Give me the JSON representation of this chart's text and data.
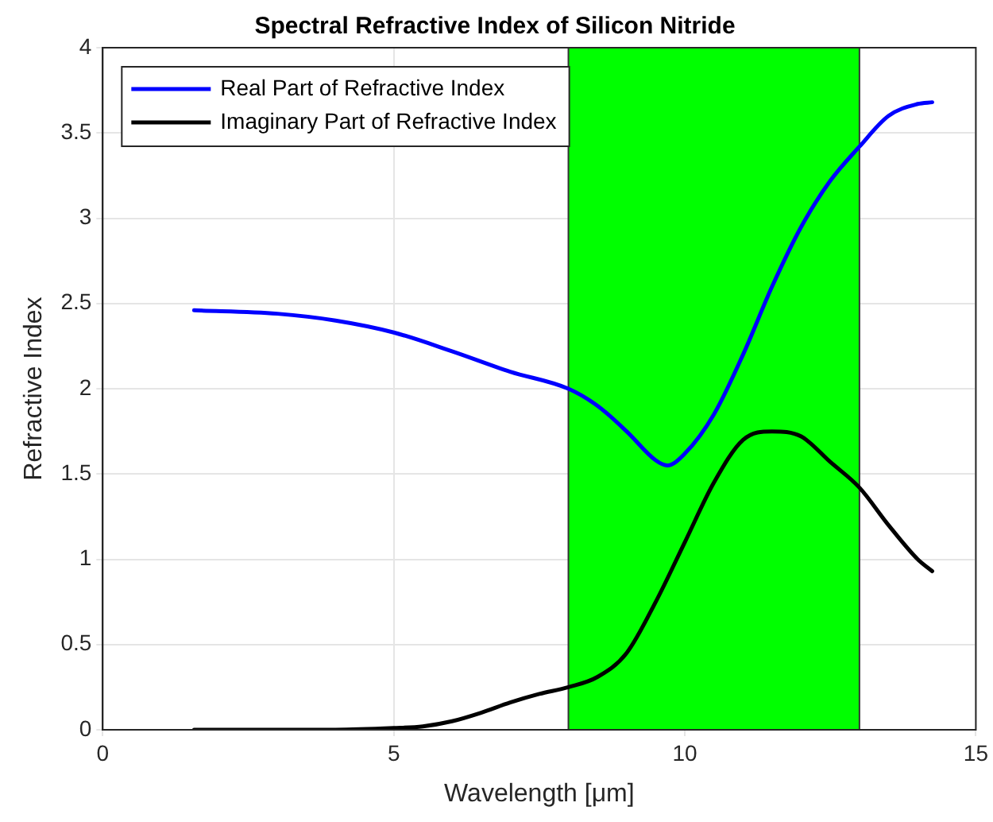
{
  "chart_data": {
    "type": "line",
    "title": "Spectral Refractive Index of Silicon Nitride",
    "xlabel": "Wavelength [μm]",
    "ylabel": "Refractive Index",
    "xlim": [
      0,
      15
    ],
    "xticks": [
      0,
      5,
      10,
      15
    ],
    "ylim": [
      0,
      4
    ],
    "yticks": [
      0,
      0.5,
      1,
      1.5,
      2,
      2.5,
      3,
      3.5,
      4
    ],
    "grid": true,
    "legend": "top left",
    "marker": "none",
    "line_style": "solid",
    "bands": [
      {
        "axis": "x",
        "from": 8,
        "to": 13,
        "color": "#00ff00"
      }
    ],
    "series": [
      {
        "name": "Real Part of Refractive Index",
        "color": "#0000ff",
        "x": [
          1.57,
          3,
          4,
          5,
          6,
          7,
          8,
          8.5,
          9,
          9.5,
          9.7,
          10,
          10.5,
          11,
          11.5,
          12,
          12.5,
          13,
          13.5,
          14,
          14.25
        ],
        "values": [
          2.46,
          2.44,
          2.4,
          2.33,
          2.22,
          2.1,
          2,
          1.9,
          1.75,
          1.58,
          1.55,
          1.62,
          1.85,
          2.2,
          2.6,
          2.95,
          3.22,
          3.42,
          3.6,
          3.67,
          3.68
        ]
      },
      {
        "name": "Imaginary Part of Refractive Index",
        "color": "#000000",
        "x": [
          1.57,
          3,
          4,
          5,
          5.5,
          6,
          6.5,
          7,
          7.5,
          8,
          8.5,
          9,
          9.5,
          10,
          10.5,
          11,
          11.5,
          12,
          12.5,
          13,
          13.5,
          14,
          14.25
        ],
        "values": [
          0,
          0,
          0,
          0.01,
          0.02,
          0.05,
          0.1,
          0.16,
          0.21,
          0.25,
          0.31,
          0.45,
          0.75,
          1.1,
          1.45,
          1.7,
          1.75,
          1.72,
          1.57,
          1.42,
          1.2,
          1,
          0.93
        ]
      }
    ]
  }
}
